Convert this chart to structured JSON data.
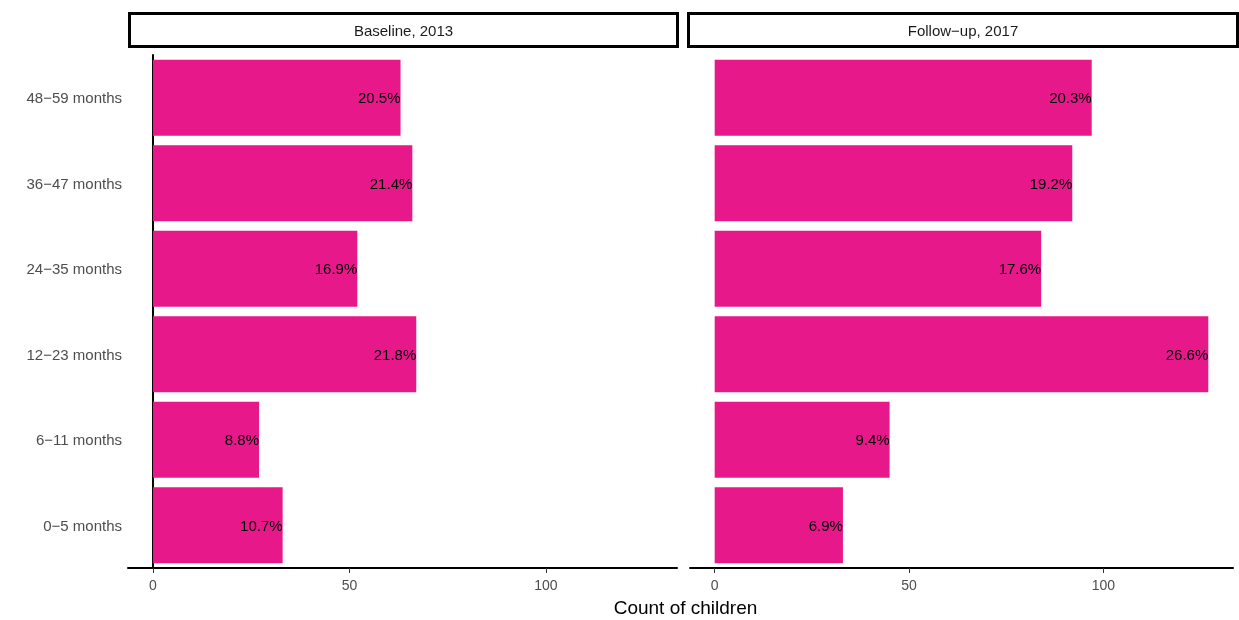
{
  "chart_data": [
    {
      "type": "bar",
      "orientation": "horizontal",
      "title": "Baseline, 2013",
      "xlabel": "Count of children",
      "categories": [
        "48−59 months",
        "36−47 months",
        "24−35 months",
        "12−23 months",
        "6−11 months",
        "0−5 months"
      ],
      "values": [
        63,
        66,
        52,
        67,
        27,
        33
      ],
      "color": "#e7198a",
      "xlim": [
        -6.35,
        133.35
      ],
      "xticks": [
        0,
        50,
        100
      ],
      "annotations": [
        {
          "text": "20.5%",
          "x": 63,
          "y": "48−59 months"
        },
        {
          "text": "21.4%",
          "x": 66,
          "y": "36−47 months"
        },
        {
          "text": "16.9%",
          "x": 52,
          "y": "24−35 months"
        },
        {
          "text": "21.8%",
          "x": 67,
          "y": "12−23 months"
        },
        {
          "text": "8.8%",
          "x": 27,
          "y": "6−11 months"
        },
        {
          "text": "10.7%",
          "x": 33,
          "y": "0−5 months"
        }
      ]
    },
    {
      "type": "bar",
      "orientation": "horizontal",
      "title": "Follow−up, 2017",
      "categories": [
        "48−59 months",
        "36−47 months",
        "24−35 months",
        "12−23 months",
        "6−11 months",
        "0−5 months"
      ],
      "values": [
        97,
        92,
        84,
        127,
        45,
        33
      ],
      "color": "#e7198a",
      "xlim": [
        -6.35,
        133.35
      ],
      "xticks": [
        0,
        50,
        100
      ],
      "tick_labels": "x",
      "annotations": [
        {
          "text": "20.3%",
          "x": 97,
          "y": "48−59 months"
        },
        {
          "text": "19.2%",
          "x": 92,
          "y": "36−47 months"
        },
        {
          "text": "17.6%",
          "x": 84,
          "y": "24−35 months"
        },
        {
          "text": "26.6%",
          "x": 127,
          "y": "12−23 months"
        },
        {
          "text": "9.4%",
          "x": 45,
          "y": "6−11 months"
        },
        {
          "text": "6.9%",
          "x": 33,
          "y": "0−5 months"
        }
      ]
    }
  ]
}
